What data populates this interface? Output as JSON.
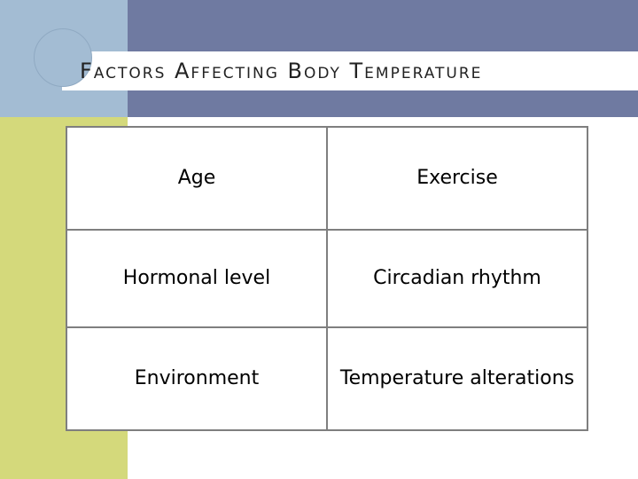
{
  "slide": {
    "title": "Factors Affecting Body Temperature"
  },
  "factors_table": {
    "rows": [
      [
        "Age",
        "Exercise"
      ],
      [
        "Hormonal level",
        "Circadian rhythm"
      ],
      [
        "Environment",
        "Temperature alterations"
      ]
    ]
  }
}
